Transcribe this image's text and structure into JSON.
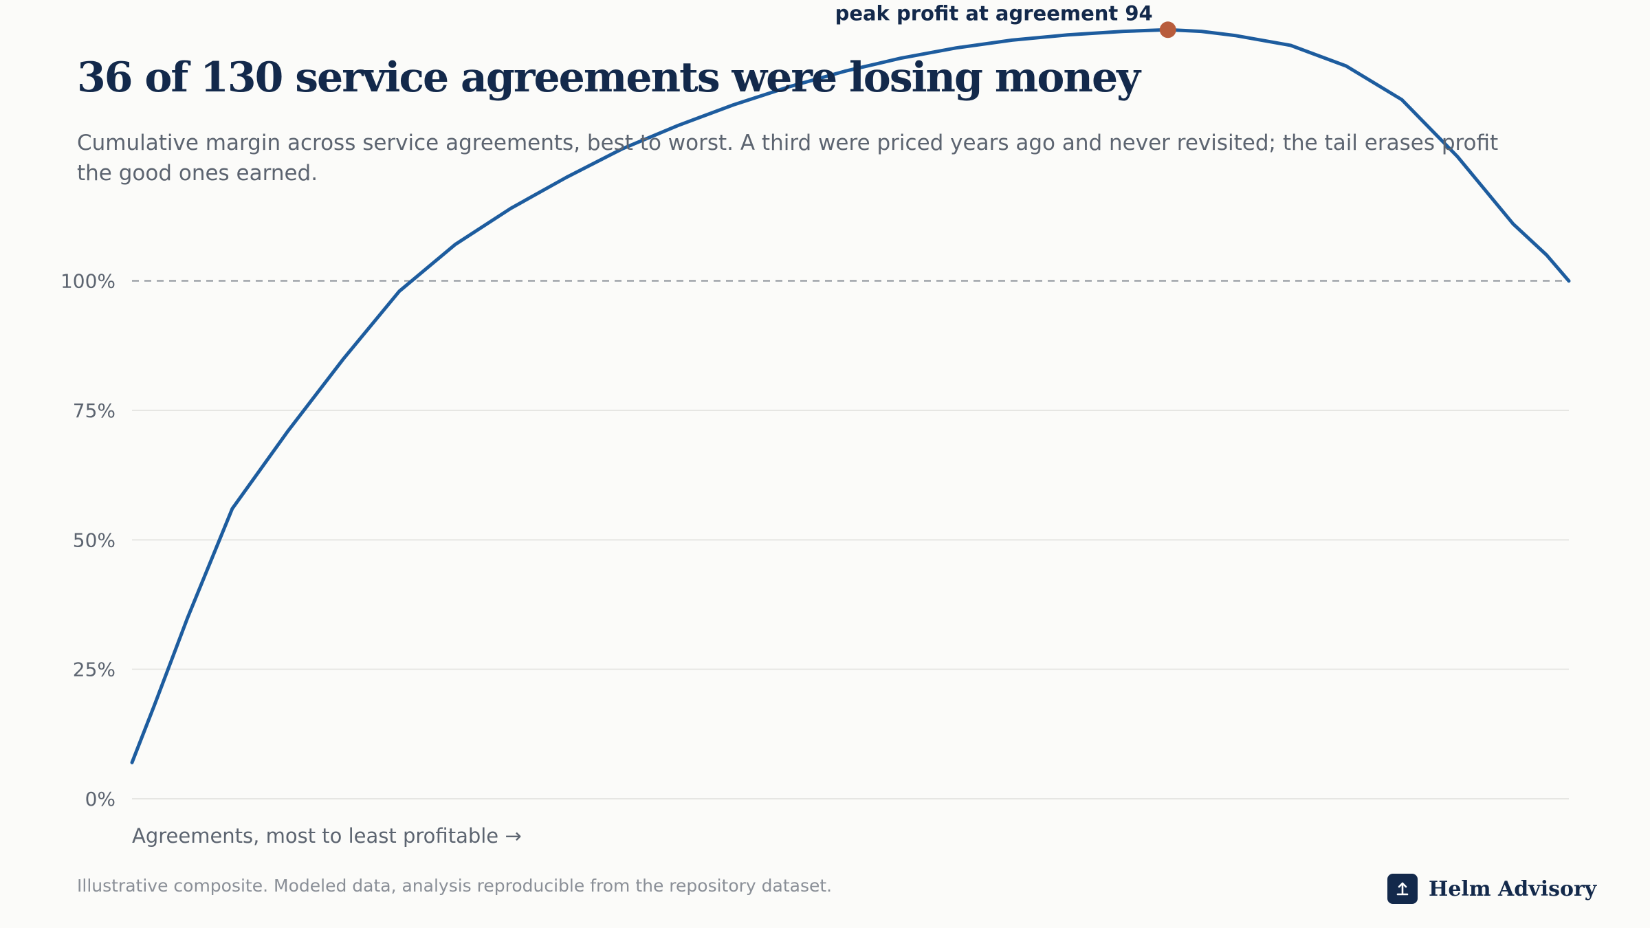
{
  "chart_data": {
    "type": "line",
    "title": "36 of 130 service agreements were losing money",
    "subtitle": "Cumulative margin across service agreements, best to worst. A third were priced years ago and never revisited; the tail erases profit the good ones earned.",
    "xlabel": "Agreements, most to least profitable →",
    "ylabel": "",
    "xlim": [
      1,
      130
    ],
    "ylim": [
      0,
      150
    ],
    "yticks": [
      {
        "value": 0,
        "label": "0%"
      },
      {
        "value": 25,
        "label": "25%"
      },
      {
        "value": 50,
        "label": "50%"
      },
      {
        "value": 75,
        "label": "75%"
      },
      {
        "value": 100,
        "label": "100%"
      }
    ],
    "reference_line": {
      "value": 100,
      "style": "dashed"
    },
    "grid": true,
    "series": [
      {
        "color": "#1d5c9e",
        "x": [
          1,
          3,
          6,
          10,
          15,
          20,
          25,
          30,
          35,
          40,
          45,
          50,
          55,
          60,
          65,
          70,
          75,
          80,
          85,
          90,
          94,
          97,
          100,
          105,
          110,
          115,
          120,
          125,
          128,
          130
        ],
        "y": [
          7,
          18,
          35,
          56,
          71,
          85,
          98,
          107,
          114,
          120,
          125.5,
          130,
          134,
          137.5,
          140.5,
          143,
          145,
          146.5,
          147.5,
          148.2,
          148.5,
          148.2,
          147.4,
          145.5,
          141.5,
          135,
          124,
          111,
          105,
          100
        ]
      }
    ],
    "annotation": {
      "x": 94,
      "y": 148.5,
      "text": "peak profit at agreement 94",
      "marker_color": "#b85c3c"
    }
  },
  "footer": {
    "note": "Illustrative composite. Modeled data, analysis reproducible from the repository dataset."
  },
  "brand": {
    "name": "Helm Advisory",
    "mark_color": "#13294b"
  }
}
